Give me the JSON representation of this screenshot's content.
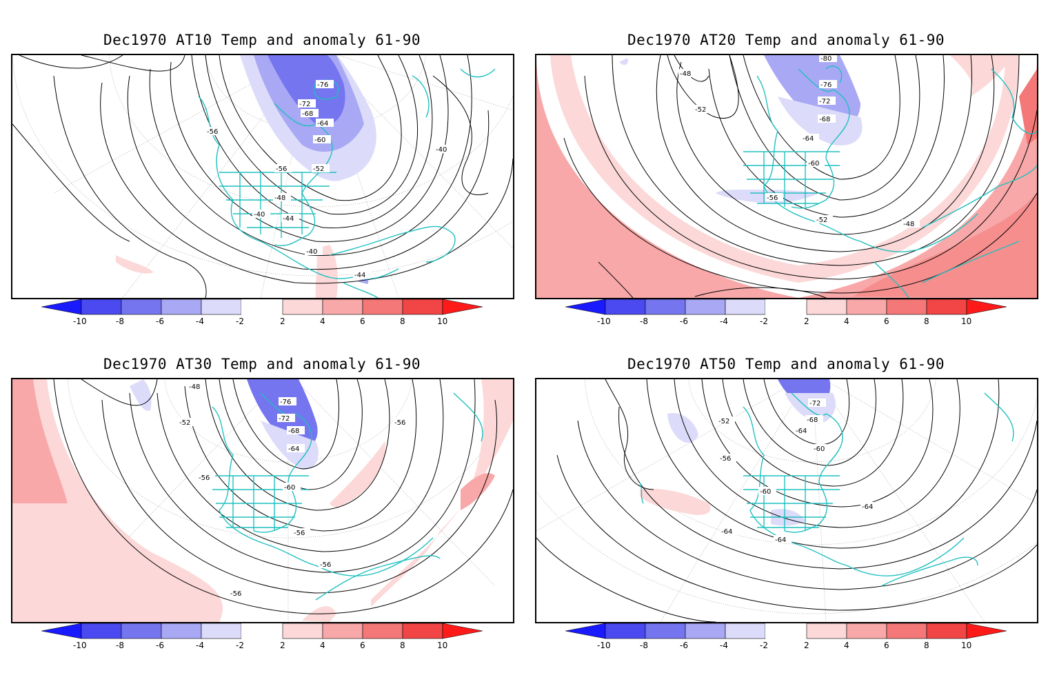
{
  "panels": [
    {
      "title": "Dec1970 AT10 Temp and anomaly 61-90",
      "contour_labels": [
        "-76",
        "-72",
        "-68",
        "-64",
        "-60",
        "-56",
        "-56",
        "-52",
        "-48",
        "-44",
        "-40",
        "-40",
        "-40",
        "-44"
      ],
      "anomaly_regions": [
        {
          "sign": "negative",
          "level": -6,
          "area": "Hudson Bay / northeastern Canada"
        },
        {
          "sign": "positive",
          "level": 2,
          "area": "Caribbean / Central America"
        },
        {
          "sign": "positive",
          "level": 2,
          "area": "eastern Pacific (small)"
        }
      ]
    },
    {
      "title": "Dec1970 AT20 Temp and anomaly 61-90",
      "contour_labels": [
        "-80",
        "-76",
        "-72",
        "-68",
        "-64",
        "-60",
        "-56",
        "-52",
        "-52",
        "-48",
        "-48"
      ],
      "anomaly_regions": [
        {
          "sign": "negative",
          "level": -6,
          "area": "Hudson Bay / northeastern Canada"
        },
        {
          "sign": "negative",
          "level": -2,
          "area": "southern US / Mexico"
        },
        {
          "sign": "positive",
          "level": 4,
          "area": "subtropical ring (Pacific and Atlantic)"
        }
      ]
    },
    {
      "title": "Dec1970 AT30 Temp and anomaly 61-90",
      "contour_labels": [
        "-48",
        "-52",
        "-56",
        "-56",
        "-60",
        "-64",
        "-68",
        "-72",
        "-76",
        "-56",
        "-56",
        "-56"
      ],
      "anomaly_regions": [
        {
          "sign": "negative",
          "level": -6,
          "area": "Hudson Bay / northeastern Canada"
        },
        {
          "sign": "negative",
          "level": -2,
          "area": "Gulf of Alaska (small)"
        },
        {
          "sign": "positive",
          "level": 4,
          "area": "western Pacific margin"
        },
        {
          "sign": "positive",
          "level": 2,
          "area": "subtropical ring and central Atlantic"
        }
      ]
    },
    {
      "title": "Dec1970 AT50 Temp and anomaly 61-90",
      "contour_labels": [
        "-72",
        "-68",
        "-64",
        "-60",
        "-60",
        "-56",
        "-52",
        "-64",
        "-64",
        "-64"
      ],
      "anomaly_regions": [
        {
          "sign": "negative",
          "level": -6,
          "area": "Hudson Bay / northeastern Canada"
        },
        {
          "sign": "negative",
          "level": -2,
          "area": "north Pacific (small)"
        },
        {
          "sign": "negative",
          "level": -2,
          "area": "Gulf of Mexico coast"
        },
        {
          "sign": "positive",
          "level": 2,
          "area": "eastern Pacific off California"
        }
      ]
    }
  ],
  "colorbar": {
    "ticks": [
      "-10",
      "-8",
      "-6",
      "-4",
      "-2",
      "2",
      "4",
      "6",
      "8",
      "10"
    ],
    "colors": {
      "neg10": "#1a1aff",
      "neg8": "#4a4af0",
      "neg6": "#7575f0",
      "neg4": "#a8a8f4",
      "neg2": "#dcdcfa",
      "zero": "#ffffff",
      "pos2": "#fcd8d8",
      "pos4": "#f8a8a8",
      "pos6": "#f47878",
      "pos8": "#f24545",
      "pos10": "#ff1a1a"
    }
  },
  "colors": {
    "coastline": "#1fbfbf",
    "contour": "#000000",
    "grid": "#888888"
  }
}
